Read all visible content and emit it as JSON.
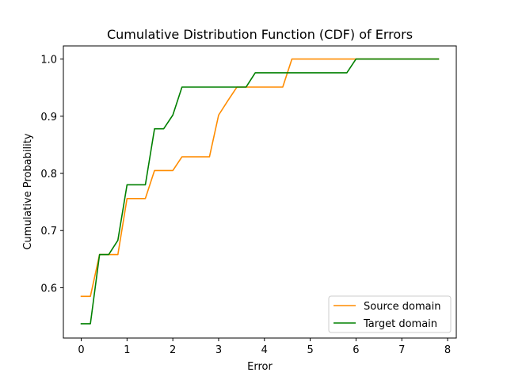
{
  "chart_data": {
    "type": "line",
    "title": "Cumulative Distribution Function (CDF) of Errors",
    "xlabel": "Error",
    "ylabel": "Cumulative Probability",
    "xlim": [
      -0.39,
      8.19
    ],
    "ylim": [
      0.512,
      1.023
    ],
    "xticks": [
      0,
      1,
      2,
      3,
      4,
      5,
      6,
      7,
      8
    ],
    "xtick_labels": [
      "0",
      "1",
      "2",
      "3",
      "4",
      "5",
      "6",
      "7",
      "8"
    ],
    "yticks": [
      0.6,
      0.7,
      0.8,
      0.9,
      1.0
    ],
    "ytick_labels": [
      "0.6",
      "0.7",
      "0.8",
      "0.9",
      "1.0"
    ],
    "grid": false,
    "legend_position": "lower-right",
    "series": [
      {
        "name": "Source domain",
        "color": "#ff8c00",
        "x": [
          0,
          0.2,
          0.4,
          0.6,
          0.8,
          1.0,
          1.2,
          1.4,
          1.6,
          1.8,
          2.0,
          2.2,
          2.4,
          2.6,
          2.8,
          3.0,
          3.2,
          3.4,
          3.6,
          3.8,
          4.0,
          4.2,
          4.4,
          4.6,
          4.8,
          5.0,
          5.2,
          5.4,
          5.6,
          5.8,
          6.0,
          6.2,
          6.4,
          6.6,
          6.8,
          7.0,
          7.2,
          7.4,
          7.6,
          7.8
        ],
        "y": [
          0.585,
          0.585,
          0.658,
          0.658,
          0.658,
          0.756,
          0.756,
          0.756,
          0.805,
          0.805,
          0.805,
          0.829,
          0.829,
          0.829,
          0.829,
          0.902,
          0.927,
          0.951,
          0.951,
          0.951,
          0.951,
          0.951,
          0.951,
          1.0,
          1.0,
          1.0,
          1.0,
          1.0,
          1.0,
          1.0,
          1.0,
          1.0,
          1.0,
          1.0,
          1.0,
          1.0,
          1.0,
          1.0,
          1.0,
          1.0
        ]
      },
      {
        "name": "Target domain",
        "color": "#008000",
        "x": [
          0,
          0.2,
          0.4,
          0.6,
          0.8,
          1.0,
          1.2,
          1.4,
          1.6,
          1.8,
          2.0,
          2.2,
          2.4,
          2.6,
          2.8,
          3.0,
          3.2,
          3.4,
          3.6,
          3.8,
          4.0,
          4.2,
          4.4,
          4.6,
          4.8,
          5.0,
          5.2,
          5.4,
          5.6,
          5.8,
          6.0,
          6.2,
          6.4,
          6.6,
          6.8,
          7.0,
          7.2,
          7.4,
          7.6,
          7.8
        ],
        "y": [
          0.537,
          0.537,
          0.658,
          0.658,
          0.683,
          0.78,
          0.78,
          0.78,
          0.878,
          0.878,
          0.902,
          0.951,
          0.951,
          0.951,
          0.951,
          0.951,
          0.951,
          0.951,
          0.951,
          0.976,
          0.976,
          0.976,
          0.976,
          0.976,
          0.976,
          0.976,
          0.976,
          0.976,
          0.976,
          0.976,
          1.0,
          1.0,
          1.0,
          1.0,
          1.0,
          1.0,
          1.0,
          1.0,
          1.0,
          1.0
        ]
      }
    ]
  }
}
